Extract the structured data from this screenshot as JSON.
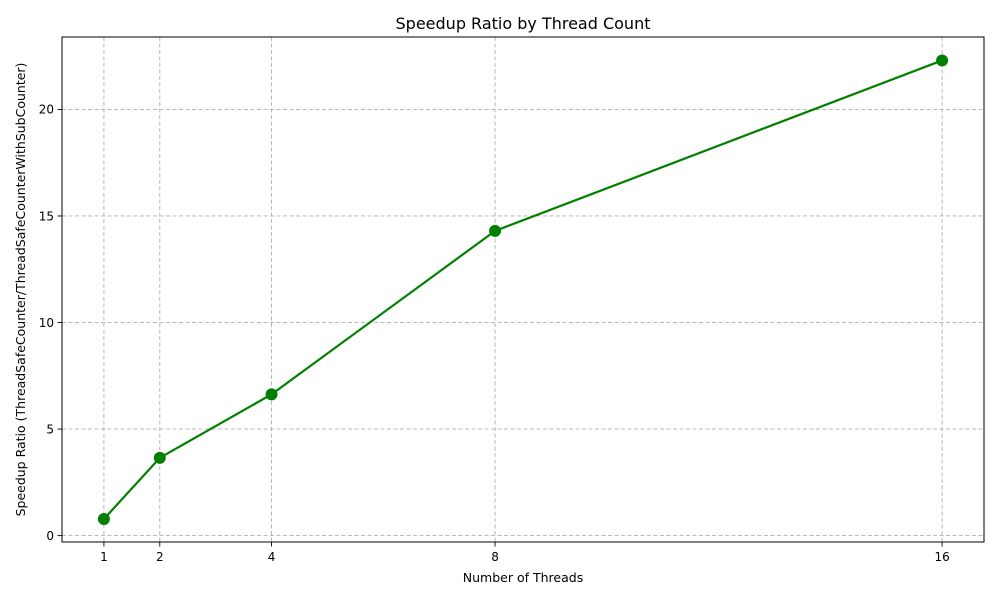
{
  "chart_data": {
    "type": "line",
    "title": "Speedup Ratio by Thread Count",
    "xlabel": "Number of Threads",
    "ylabel": "Speedup Ratio (ThreadSafeCounter/ThreadSafeCounterWithSubCounter)",
    "x": [
      1,
      2,
      4,
      8,
      16
    ],
    "x_tick_labels": [
      "1",
      "2",
      "4",
      "8",
      "16"
    ],
    "y_ticks": [
      0,
      5,
      10,
      15,
      20
    ],
    "y_tick_labels": [
      "0",
      "5",
      "10",
      "15",
      "20"
    ],
    "xlim": [
      0.25,
      16.75
    ],
    "ylim": [
      -0.3,
      23.4
    ],
    "grid": true,
    "series": [
      {
        "values": [
          0.78,
          3.65,
          6.63,
          14.3,
          22.3
        ],
        "color": "#008000",
        "marker": "circle"
      }
    ]
  }
}
